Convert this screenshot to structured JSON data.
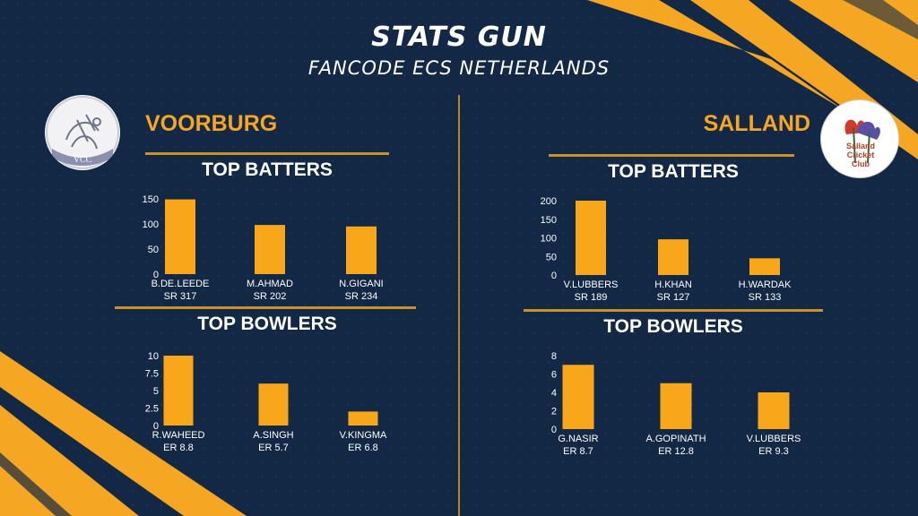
{
  "header": {
    "title": "STATS GUN",
    "subtitle": "FANCODE ECS NETHERLANDS"
  },
  "colors": {
    "background": "#132845",
    "accent": "#f5a623",
    "bar": "#f8a71b",
    "rule": "#c8922a",
    "text": "#ffffff"
  },
  "teams": {
    "left": {
      "name": "VOORBURG",
      "logo_text": "VCC"
    },
    "right": {
      "name": "SALLAND",
      "logo_text": "Salland Cricket Club"
    }
  },
  "sections": {
    "batters": "TOP BATTERS",
    "bowlers": "TOP BOWLERS"
  },
  "chart_data": [
    {
      "id": "voorburg-batters",
      "type": "bar",
      "categories": [
        "B.DE.LEEDE",
        "M.AHMAD",
        "N.GIGANI"
      ],
      "sublabels": [
        "SR 317",
        "SR 202",
        "SR 234"
      ],
      "values": [
        149,
        98,
        95
      ],
      "yticks": [
        "0",
        "50",
        "100",
        "150"
      ],
      "ylim": [
        0,
        150
      ]
    },
    {
      "id": "voorburg-bowlers",
      "type": "bar",
      "categories": [
        "R.WAHEED",
        "A.SINGH",
        "V.KINGMA"
      ],
      "sublabels": [
        "ER 8.8",
        "ER 5.7",
        "ER 6.8"
      ],
      "values": [
        10,
        6,
        2
      ],
      "yticks": [
        "0",
        "2.5",
        "5",
        "7.5",
        "10"
      ],
      "ylim": [
        0,
        10
      ]
    },
    {
      "id": "salland-batters",
      "type": "bar",
      "categories": [
        "V.LUBBERS",
        "H.KHAN",
        "H.WARDAK"
      ],
      "sublabels": [
        "SR 189",
        "SR 127",
        "SR 133"
      ],
      "values": [
        200,
        96,
        45
      ],
      "yticks": [
        "0",
        "50",
        "100",
        "150",
        "200"
      ],
      "ylim": [
        0,
        200
      ]
    },
    {
      "id": "salland-bowlers",
      "type": "bar",
      "categories": [
        "G.NASIR",
        "A.GOPINATH",
        "V.LUBBERS"
      ],
      "sublabels": [
        "ER 8.7",
        "ER 12.8",
        "ER 9.3"
      ],
      "values": [
        7,
        5,
        4
      ],
      "yticks": [
        "0",
        "2",
        "4",
        "6",
        "8"
      ],
      "ylim": [
        0,
        8
      ]
    }
  ]
}
